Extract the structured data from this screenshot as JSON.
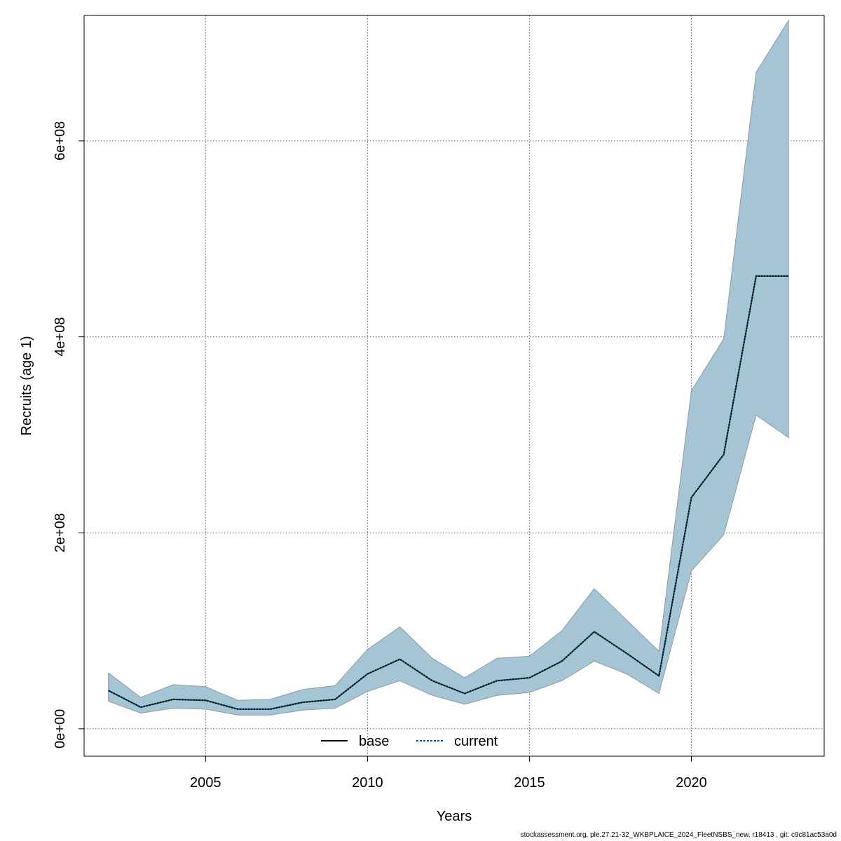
{
  "chart_data": {
    "type": "area",
    "xlabel": "Years",
    "ylabel": "Recruits (age 1)",
    "xlim": [
      2001.25,
      2024.1
    ],
    "ylim": [
      -28000000,
      728000000
    ],
    "x_ticks": [
      2005,
      2010,
      2015,
      2020
    ],
    "x_tick_labels": [
      "2005",
      "2010",
      "2015",
      "2020"
    ],
    "y_ticks": [
      0,
      200000000,
      400000000,
      600000000
    ],
    "y_tick_labels": [
      "0e+00",
      "2e+08",
      "4e+08",
      "6e+08"
    ],
    "grid": true,
    "legend_position": "bottom-center",
    "colors": {
      "band_fill": "#a5c4d4",
      "band_edge": "#8c9ba3",
      "current_line": "#00587a",
      "base_line": "#000000",
      "grid": "#555555"
    },
    "x": [
      2002,
      2003,
      2004,
      2005,
      2006,
      2007,
      2008,
      2009,
      2010,
      2011,
      2012,
      2013,
      2014,
      2015,
      2016,
      2017,
      2018,
      2019,
      2020,
      2021,
      2022,
      2023
    ],
    "series": [
      {
        "name": "base",
        "style": "solid",
        "values": [
          39000000,
          22000000,
          30000000,
          29000000,
          20000000,
          20000000,
          27000000,
          30000000,
          56000000,
          71000000,
          49000000,
          36000000,
          49000000,
          52000000,
          69000000,
          99000000,
          77000000,
          54000000,
          236000000,
          280000000,
          462000000,
          462000000
        ]
      },
      {
        "name": "current",
        "style": "dotted",
        "values": [
          39000000,
          22000000,
          30000000,
          29000000,
          20000000,
          20000000,
          27000000,
          30000000,
          56000000,
          71000000,
          49000000,
          36000000,
          49000000,
          52000000,
          69000000,
          99000000,
          77000000,
          54000000,
          236000000,
          280000000,
          462000000,
          462000000
        ]
      }
    ],
    "band": {
      "lower": [
        28000000,
        16000000,
        21000000,
        20000000,
        14000000,
        14000000,
        19000000,
        21000000,
        38000000,
        49000000,
        34000000,
        25000000,
        34000000,
        37000000,
        49000000,
        69000000,
        56000000,
        36000000,
        161000000,
        198000000,
        320000000,
        297000000
      ],
      "upper": [
        57000000,
        32000000,
        45000000,
        43000000,
        29000000,
        30000000,
        40000000,
        44000000,
        81000000,
        104000000,
        72000000,
        52000000,
        72000000,
        74000000,
        100000000,
        143000000,
        111000000,
        79000000,
        345000000,
        398000000,
        670000000,
        723000000
      ]
    }
  },
  "footer_text": "stockassessment.org, ple.27.21-32_WKBPLAICE_2024_FleetNSBS_new, r18413 , git: c9c81ac53a0d"
}
